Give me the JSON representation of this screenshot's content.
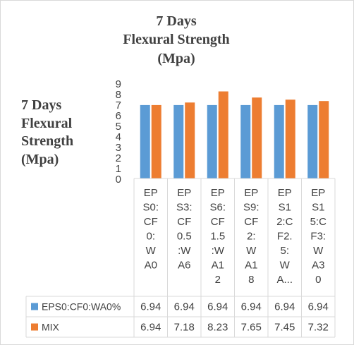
{
  "chart_data": {
    "type": "bar",
    "title_lines": [
      "7 Days",
      "Flexural Strength",
      "(Mpa)"
    ],
    "ylabel_lines": [
      "7 Days",
      "Flexural",
      "Strength",
      "(Mpa)"
    ],
    "xlabel": "",
    "ylim": [
      0,
      9
    ],
    "yticks": [
      "0",
      "1",
      "2",
      "3",
      "4",
      "5",
      "6",
      "7",
      "8",
      "9"
    ],
    "grid": false,
    "legend": "data-table",
    "categories": [
      [
        "EP",
        "S0:",
        "CF",
        "0:",
        "W",
        "A0"
      ],
      [
        "EP",
        "S3:",
        "CF",
        "0.5",
        ":W",
        "A6"
      ],
      [
        "EP",
        "S6:",
        "CF",
        "1.5",
        ":W",
        "A1",
        "2"
      ],
      [
        "EP",
        "S9:",
        "CF",
        "2:",
        "W",
        "A1",
        "8"
      ],
      [
        "EP",
        "S1",
        "2:C",
        "F2.",
        "5:",
        "W",
        "A..."
      ],
      [
        "EP",
        "S1",
        "5:C",
        "F3:",
        "W",
        "A3",
        "0"
      ]
    ],
    "series": [
      {
        "name": "EPS0:CF0:WA0%",
        "color": "#5b9bd5",
        "values": [
          6.94,
          6.94,
          6.94,
          6.94,
          6.94,
          6.94
        ],
        "labels": [
          "6.94",
          "6.94",
          "6.94",
          "6.94",
          "6.94",
          "6.94"
        ]
      },
      {
        "name": "MIX",
        "color": "#ed7d31",
        "values": [
          6.94,
          7.18,
          8.23,
          7.65,
          7.45,
          7.32
        ],
        "labels": [
          "6.94",
          "7.18",
          "8.23",
          "7.65",
          "7.45",
          "7.32"
        ]
      }
    ]
  }
}
